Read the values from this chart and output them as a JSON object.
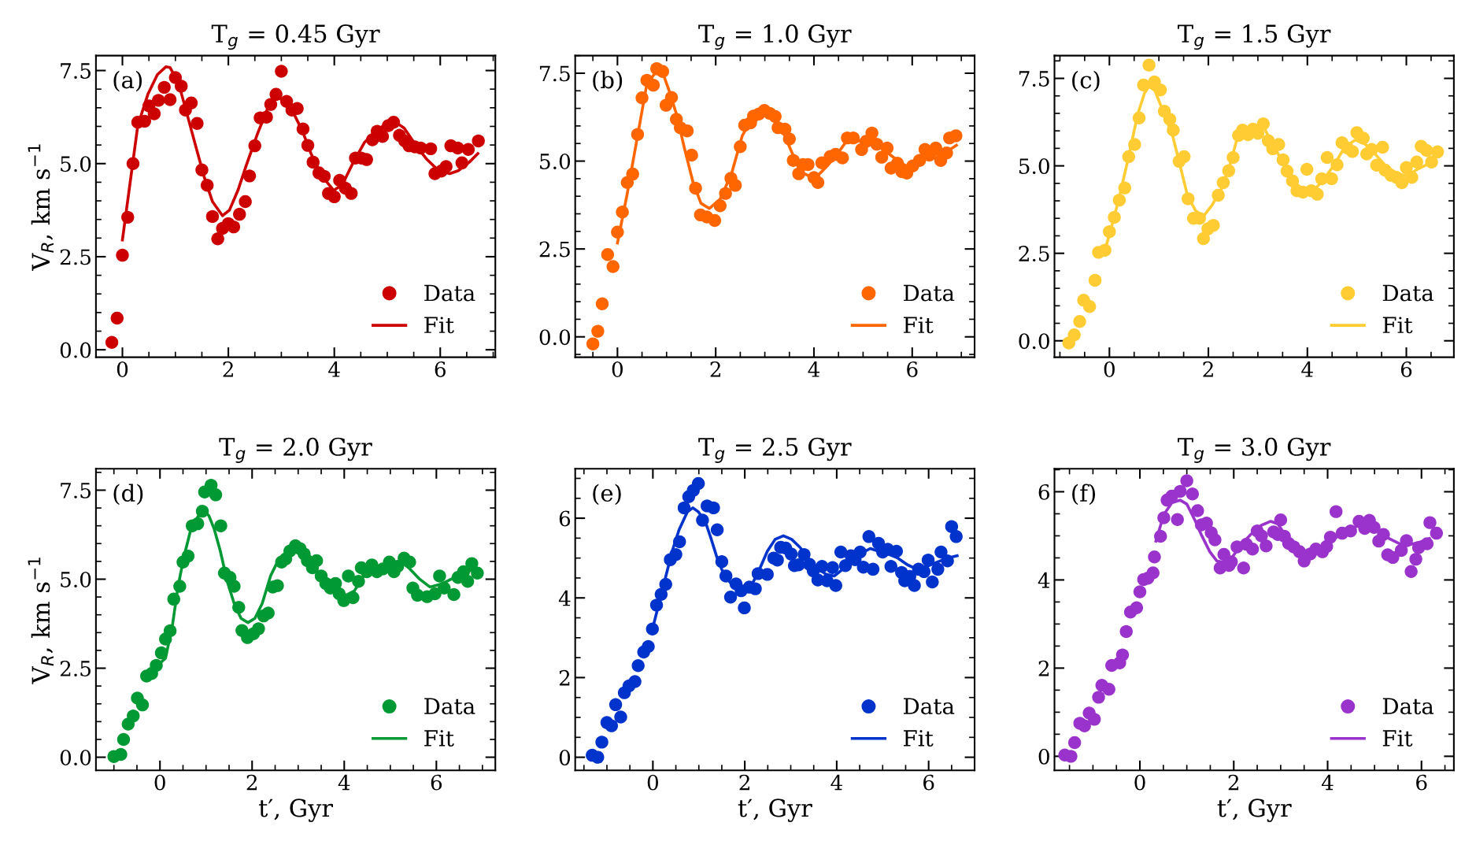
{
  "chart_data": [
    {
      "type": "scatter",
      "title": "T$_{g}$ = 0.45 Gyr",
      "ylabel": "V$_{R}$, km s$^{−1}$",
      "annotations": [
        "(a)"
      ],
      "legend": "bottom right",
      "grid": false,
      "xlim": [
        -0.5,
        7.04
      ],
      "ylim": [
        -0.2,
        7.9
      ],
      "xticks": [
        0,
        2,
        4,
        6
      ],
      "yticks": [
        {
          "value": 0,
          "label": "0.0"
        },
        {
          "value": 2.5,
          "label": "2.5"
        },
        {
          "value": 5,
          "label": "5.0"
        },
        {
          "value": 7.5,
          "label": "7.5"
        }
      ],
      "series": [
        {
          "name": "Data",
          "marker": "circle",
          "color": "#cc0000",
          "x": [
            -0.2,
            -0.1,
            0,
            0.1,
            0.2,
            0.29,
            0.42,
            0.5,
            0.6,
            0.68,
            0.79,
            0.9,
            1.0,
            1.11,
            1.19,
            1.3,
            1.41,
            1.5,
            1.6,
            1.7,
            1.8,
            1.89,
            2.0,
            2.1,
            2.21,
            2.32,
            2.4,
            2.5,
            2.6,
            2.72,
            2.8,
            2.9,
            3.0,
            3.1,
            3.2,
            3.3,
            3.41,
            3.5,
            3.6,
            3.71,
            3.81,
            3.89,
            4.0,
            4.1,
            4.21,
            4.32,
            4.4,
            4.51,
            4.61,
            4.72,
            4.81,
            4.91,
            5.02,
            5.12,
            5.23,
            5.33,
            5.41,
            5.52,
            5.63,
            5.82,
            5.9,
            6.02,
            6.11,
            6.2,
            6.33,
            6.41,
            6.53,
            6.72
          ],
          "values": [
            0.2,
            0.85,
            2.54,
            3.56,
            5.0,
            6.11,
            6.14,
            6.55,
            6.34,
            6.7,
            7.05,
            6.72,
            7.31,
            7.08,
            6.44,
            6.63,
            6.08,
            4.83,
            4.42,
            3.58,
            2.98,
            3.26,
            3.39,
            3.3,
            3.64,
            3.98,
            4.67,
            5.48,
            6.23,
            6.25,
            6.59,
            6.86,
            7.48,
            6.67,
            6.44,
            6.48,
            5.93,
            5.49,
            5.04,
            4.75,
            4.66,
            4.2,
            4.11,
            4.55,
            4.34,
            4.2,
            5.15,
            5.15,
            5.11,
            5.64,
            5.87,
            5.73,
            6.02,
            6.11,
            5.76,
            5.61,
            5.48,
            5.45,
            5.42,
            5.4,
            4.73,
            4.8,
            4.92,
            5.48,
            5.42,
            5.02,
            5.38,
            5.61
          ]
        },
        {
          "name": "Fit",
          "type": "line",
          "line_style": "solid",
          "color": "#cc0000",
          "x": [
            0,
            0.29,
            0.48,
            0.66,
            0.82,
            0.9,
            1.06,
            1.22,
            1.38,
            1.54,
            1.7,
            1.89,
            2.02,
            2.18,
            2.34,
            2.55,
            2.76,
            2.92,
            3.08,
            3.24,
            3.4,
            3.56,
            3.77,
            3.99,
            4.15,
            4.36,
            4.57,
            4.79,
            5.0,
            5.13,
            5.32,
            5.54,
            5.75,
            5.97,
            6.18,
            6.34,
            6.55,
            6.71
          ],
          "values": [
            2.95,
            6.02,
            6.86,
            7.39,
            7.6,
            7.58,
            7.16,
            6.33,
            5.49,
            4.66,
            3.98,
            3.6,
            3.75,
            4.28,
            4.96,
            5.8,
            6.55,
            6.78,
            6.67,
            6.33,
            5.87,
            5.27,
            4.66,
            4.28,
            4.43,
            5.04,
            5.57,
            5.87,
            6.1,
            6.14,
            5.95,
            5.49,
            5.11,
            4.81,
            4.73,
            4.81,
            5.04,
            5.27
          ]
        }
      ]
    },
    {
      "type": "scatter",
      "title": "T$_{g}$ = 1.0 Gyr",
      "annotations": [
        "(b)"
      ],
      "legend": "bottom right",
      "grid": false,
      "xlim": [
        -0.86,
        7.27
      ],
      "ylim": [
        -0.58,
        8.0
      ],
      "xticks": [
        0,
        2,
        4,
        6
      ],
      "yticks": [
        {
          "value": 0,
          "label": "0.0"
        },
        {
          "value": 2.5,
          "label": "2.5"
        },
        {
          "value": 5,
          "label": "5.0"
        },
        {
          "value": 7.5,
          "label": "7.5"
        }
      ],
      "series": [
        {
          "name": "Data",
          "marker": "circle",
          "color": "#ff6600",
          "x": [
            -0.5,
            -0.4,
            -0.31,
            -0.2,
            -0.09,
            0,
            0.1,
            0.2,
            0.31,
            0.41,
            0.5,
            0.6,
            0.73,
            0.8,
            0.92,
            0.99,
            1.1,
            1.2,
            1.28,
            1.42,
            1.51,
            1.59,
            1.69,
            1.82,
            1.98,
            2.09,
            2.2,
            2.31,
            2.4,
            2.5,
            2.59,
            2.71,
            2.77,
            2.88,
            2.99,
            3.1,
            3.21,
            3.27,
            3.41,
            3.5,
            3.58,
            3.69,
            3.78,
            3.88,
            4.0,
            4.08,
            4.16,
            4.33,
            4.44,
            4.58,
            4.68,
            4.8,
            4.97,
            5.06,
            5.18,
            5.28,
            5.38,
            5.49,
            5.57,
            5.7,
            5.79,
            5.89,
            6.01,
            6.15,
            6.26,
            6.35,
            6.48,
            6.58,
            6.7,
            6.76,
            6.89
          ],
          "values": [
            -0.2,
            0.16,
            0.94,
            2.34,
            2.0,
            2.98,
            3.55,
            4.39,
            4.63,
            5.76,
            6.8,
            7.3,
            7.16,
            7.63,
            7.55,
            6.59,
            6.81,
            6.19,
            5.95,
            5.86,
            5.17,
            4.23,
            3.47,
            3.41,
            3.31,
            3.73,
            4.08,
            4.51,
            4.31,
            5.41,
            6.02,
            6.09,
            6.28,
            6.34,
            6.44,
            6.36,
            6.27,
            5.95,
            5.91,
            5.63,
            5.02,
            4.64,
            4.9,
            4.9,
            4.53,
            4.39,
            4.95,
            5.13,
            5.19,
            5.09,
            5.66,
            5.66,
            5.33,
            5.56,
            5.8,
            5.48,
            5.11,
            5.37,
            4.8,
            4.94,
            4.7,
            4.66,
            4.86,
            5.02,
            5.33,
            5.17,
            5.37,
            5.02,
            5.23,
            5.66,
            5.72
          ]
        },
        {
          "name": "Fit",
          "type": "line",
          "line_style": "solid",
          "color": "#ff6600",
          "x": [
            0,
            0.2,
            0.42,
            0.59,
            0.75,
            0.92,
            1.06,
            1.2,
            1.37,
            1.54,
            1.7,
            1.87,
            2.09,
            2.32,
            2.54,
            2.77,
            2.99,
            3.21,
            3.38,
            3.55,
            3.72,
            3.88,
            4.05,
            4.27,
            4.5,
            4.66,
            4.89,
            5.11,
            5.34,
            5.56,
            5.78,
            5.89,
            6.12,
            6.4,
            6.68,
            6.9
          ],
          "values": [
            2.67,
            4.08,
            5.8,
            7.13,
            7.48,
            7.52,
            6.97,
            6.34,
            5.33,
            4.39,
            3.8,
            3.65,
            3.92,
            4.63,
            5.72,
            6.27,
            6.41,
            6.27,
            5.8,
            5.25,
            4.7,
            4.59,
            4.55,
            4.86,
            5.25,
            5.56,
            5.56,
            5.64,
            5.41,
            5.17,
            4.94,
            4.86,
            4.98,
            5.17,
            5.25,
            5.45
          ]
        }
      ]
    },
    {
      "type": "scatter",
      "title": "T$_{g}$ = 1.5 Gyr",
      "annotations": [
        "(c)"
      ],
      "legend": "bottom right",
      "grid": false,
      "xlim": [
        -1.11,
        6.96
      ],
      "ylim": [
        -0.47,
        8.15
      ],
      "xticks": [
        0,
        2,
        4,
        6
      ],
      "yticks": [
        {
          "value": 0,
          "label": "0.0"
        },
        {
          "value": 2.5,
          "label": "2.5"
        },
        {
          "value": 5,
          "label": "5.0"
        },
        {
          "value": 7.5,
          "label": "7.5"
        }
      ],
      "series": [
        {
          "name": "Data",
          "marker": "circle",
          "color": "#ffcc33",
          "x": [
            -0.82,
            -0.71,
            -0.6,
            -0.52,
            -0.4,
            -0.29,
            -0.22,
            -0.09,
            0,
            0.1,
            0.2,
            0.31,
            0.39,
            0.51,
            0.6,
            0.69,
            0.8,
            0.91,
            1.03,
            1.11,
            1.22,
            1.29,
            1.41,
            1.51,
            1.59,
            1.7,
            1.82,
            1.9,
            1.99,
            2.1,
            2.2,
            2.3,
            2.41,
            2.5,
            2.61,
            2.69,
            2.8,
            2.9,
            3.0,
            3.11,
            3.21,
            3.3,
            3.42,
            3.51,
            3.59,
            3.7,
            3.79,
            3.91,
            3.99,
            4.08,
            4.2,
            4.29,
            4.4,
            4.49,
            4.6,
            4.7,
            4.81,
            4.91,
            5.0,
            5.13,
            5.2,
            5.3,
            5.4,
            5.52,
            5.57,
            5.69,
            5.8,
            5.91,
            6.0,
            6.11,
            6.21,
            6.3,
            6.41,
            6.51,
            6.63
          ],
          "values": [
            -0.06,
            0.17,
            0.55,
            1.16,
            0.98,
            1.73,
            2.53,
            2.59,
            3.12,
            3.53,
            4.02,
            4.37,
            5.26,
            5.61,
            6.37,
            7.31,
            7.88,
            7.4,
            7.17,
            6.56,
            6.33,
            6.02,
            5.13,
            5.26,
            4.06,
            3.5,
            3.5,
            2.92,
            3.2,
            3.3,
            4.16,
            4.52,
            4.86,
            5.24,
            5.87,
            6.02,
            5.89,
            6.05,
            5.93,
            6.2,
            5.72,
            5.49,
            5.61,
            5.17,
            4.85,
            4.57,
            4.29,
            4.25,
            4.9,
            4.29,
            4.19,
            4.63,
            5.24,
            4.63,
            5.03,
            5.66,
            5.51,
            5.41,
            5.95,
            5.79,
            5.34,
            5.47,
            5.02,
            5.53,
            4.88,
            4.73,
            4.67,
            4.52,
            4.95,
            4.67,
            5.11,
            5.56,
            5.44,
            5.11,
            5.4
          ]
        },
        {
          "name": "Fit",
          "type": "line",
          "line_style": "solid",
          "color": "#ffcc33",
          "x": [
            -0.09,
            0,
            0.2,
            0.41,
            0.57,
            0.71,
            0.8,
            0.92,
            1.11,
            1.28,
            1.44,
            1.58,
            1.74,
            1.9,
            2.07,
            2.26,
            2.42,
            2.58,
            2.74,
            2.96,
            3.13,
            3.29,
            3.45,
            3.61,
            3.78,
            3.94,
            4.13,
            4.32,
            4.54,
            4.76,
            4.97,
            5.16,
            5.38,
            5.57,
            5.79,
            6.01,
            6.22,
            6.49
          ],
          "values": [
            2.6,
            3.03,
            4.1,
            5.4,
            6.47,
            7.08,
            7.27,
            7.15,
            6.47,
            5.85,
            4.94,
            4.14,
            3.72,
            3.56,
            3.87,
            4.33,
            4.94,
            5.78,
            6.01,
            6.01,
            6.08,
            5.63,
            5.24,
            4.86,
            4.48,
            4.29,
            4.29,
            4.6,
            5.02,
            5.55,
            5.74,
            5.63,
            5.32,
            5.02,
            4.79,
            4.71,
            4.9,
            5.09
          ]
        }
      ]
    },
    {
      "type": "scatter",
      "title": "T$_{g}$ = 2.0 Gyr",
      "xlabel": "t′, Gyr",
      "ylabel": "V$_{R}$, km s$^{−1}$",
      "annotations": [
        "(d)"
      ],
      "legend": "bottom right",
      "grid": false,
      "xlim": [
        -1.39,
        7.28
      ],
      "ylim": [
        -0.37,
        8.1
      ],
      "xticks": [
        0,
        2,
        4,
        6
      ],
      "yticks": [
        {
          "value": 0,
          "label": "0.0"
        },
        {
          "value": 2.5,
          "label": "2.5"
        },
        {
          "value": 5,
          "label": "5.0"
        },
        {
          "value": 7.5,
          "label": "7.5"
        }
      ],
      "series": [
        {
          "name": "Data",
          "marker": "circle",
          "color": "#009933",
          "x": [
            -1.0,
            -0.85,
            -0.79,
            -0.69,
            -0.58,
            -0.49,
            -0.38,
            -0.29,
            -0.18,
            -0.08,
            0.03,
            0.12,
            0.22,
            0.3,
            0.43,
            0.5,
            0.61,
            0.7,
            0.82,
            0.92,
            0.97,
            1.11,
            1.21,
            1.32,
            1.4,
            1.52,
            1.61,
            1.71,
            1.78,
            1.9,
            2.03,
            2.14,
            2.25,
            2.35,
            2.45,
            2.55,
            2.64,
            2.73,
            2.82,
            2.94,
            3.04,
            3.13,
            3.2,
            3.31,
            3.4,
            3.5,
            3.6,
            3.7,
            3.81,
            3.89,
            3.99,
            4.09,
            4.19,
            4.31,
            4.37,
            4.49,
            4.6,
            4.71,
            4.84,
            4.98,
            5.08,
            5.16,
            5.3,
            5.42,
            5.49,
            5.59,
            5.8,
            5.97,
            6.07,
            6.17,
            6.38,
            6.47,
            6.59,
            6.68,
            6.77,
            6.89
          ],
          "values": [
            0.02,
            0.08,
            0.5,
            0.93,
            1.16,
            1.66,
            1.47,
            2.28,
            2.35,
            2.58,
            2.93,
            3.32,
            3.55,
            4.44,
            4.8,
            5.48,
            5.65,
            6.5,
            6.56,
            6.91,
            7.45,
            7.64,
            7.37,
            6.5,
            5.17,
            5.05,
            4.8,
            4.21,
            3.56,
            3.36,
            3.47,
            3.61,
            3.97,
            4.05,
            4.78,
            4.82,
            5.48,
            5.57,
            5.79,
            5.94,
            5.86,
            5.71,
            5.52,
            5.32,
            5.52,
            5.09,
            4.88,
            4.75,
            4.88,
            4.59,
            4.4,
            5.09,
            4.48,
            4.94,
            5.32,
            5.21,
            5.4,
            5.21,
            5.29,
            5.48,
            5.21,
            5.36,
            5.59,
            5.48,
            4.75,
            4.55,
            4.51,
            4.59,
            5.09,
            4.75,
            4.57,
            5.05,
            5.21,
            4.94,
            5.44,
            5.17
          ]
        },
        {
          "name": "Fit",
          "type": "line",
          "line_style": "solid",
          "color": "#009933",
          "x": [
            -0.08,
            0.12,
            0.27,
            0.39,
            0.52,
            0.67,
            0.82,
            0.94,
            1.06,
            1.18,
            1.31,
            1.46,
            1.61,
            1.76,
            1.91,
            2.06,
            2.22,
            2.4,
            2.58,
            2.76,
            2.94,
            3.13,
            3.31,
            3.49,
            3.67,
            3.86,
            4.04,
            4.22,
            4.4,
            4.58,
            4.83,
            5.07,
            5.25,
            5.4,
            5.62,
            5.86,
            6.1,
            6.35,
            6.59,
            6.83
          ],
          "values": [
            2.55,
            2.78,
            3.7,
            4.78,
            5.63,
            6.4,
            6.75,
            6.91,
            6.79,
            6.4,
            5.79,
            4.94,
            4.32,
            3.9,
            3.78,
            3.9,
            4.32,
            5.09,
            5.56,
            5.75,
            5.79,
            5.63,
            5.36,
            5.09,
            4.82,
            4.67,
            4.55,
            4.67,
            5.05,
            5.29,
            5.32,
            5.4,
            5.48,
            5.32,
            5.02,
            4.78,
            4.86,
            5.02,
            5.17,
            5.29
          ]
        }
      ]
    },
    {
      "type": "scatter",
      "title": "T$_{g}$ = 2.5 Gyr",
      "xlabel": "t′, Gyr",
      "annotations": [
        "(e)"
      ],
      "legend": "bottom right",
      "grid": false,
      "xlim": [
        -1.69,
        7.0
      ],
      "ylim": [
        -0.33,
        7.24
      ],
      "xticks": [
        0,
        2,
        4,
        6
      ],
      "yticks": [
        0,
        2,
        4,
        6
      ],
      "series": [
        {
          "name": "Data",
          "marker": "circle",
          "color": "#0033cc",
          "x": [
            -1.32,
            -1.2,
            -1.11,
            -1.0,
            -0.9,
            -0.81,
            -0.7,
            -0.62,
            -0.52,
            -0.39,
            -0.32,
            -0.2,
            -0.1,
            -0.01,
            0.08,
            0.18,
            0.28,
            0.38,
            0.5,
            0.58,
            0.68,
            0.78,
            0.88,
            0.99,
            1.08,
            1.18,
            1.32,
            1.4,
            1.5,
            1.59,
            1.69,
            1.81,
            1.92,
            1.99,
            2.1,
            2.23,
            2.29,
            2.49,
            2.63,
            2.71,
            2.78,
            2.89,
            3.01,
            3.08,
            3.17,
            3.29,
            3.41,
            3.49,
            3.59,
            3.68,
            3.79,
            3.91,
            3.98,
            4.09,
            4.19,
            4.31,
            4.4,
            4.51,
            4.58,
            4.7,
            4.79,
            4.91,
            5.0,
            5.11,
            5.18,
            5.3,
            5.41,
            5.48,
            5.59,
            5.69,
            5.78,
            5.9,
            5.99,
            6.08,
            6.2,
            6.27,
            6.41,
            6.5,
            6.6
          ],
          "values": [
            0.05,
            0,
            0.38,
            0.87,
            0.79,
            1.32,
            1.01,
            1.62,
            1.79,
            1.9,
            2.3,
            2.64,
            2.78,
            3.22,
            3.82,
            4.09,
            4.34,
            4.96,
            5.09,
            5.41,
            6.26,
            6.54,
            6.7,
            6.87,
            5.95,
            6.31,
            6.26,
            5.71,
            4.91,
            4.55,
            4.02,
            4.35,
            4.18,
            3.75,
            4.27,
            4.23,
            4.61,
            4.59,
            5.0,
            4.95,
            5.27,
            5.25,
            5.1,
            4.81,
            4.83,
            5.09,
            4.84,
            4.68,
            4.45,
            4.79,
            4.43,
            4.76,
            4.31,
            5.15,
            4.81,
            5.06,
            4.96,
            5.15,
            4.77,
            5.54,
            4.72,
            5.37,
            5.15,
            5.22,
            4.79,
            5.17,
            4.64,
            4.43,
            4.54,
            4.31,
            4.72,
            4.66,
            4.95,
            4.4,
            4.72,
            5.15,
            4.93,
            5.79,
            5.54
          ]
        },
        {
          "name": "Fit",
          "type": "line",
          "line_style": "solid",
          "color": "#0033cc",
          "x": [
            0,
            0.15,
            0.27,
            0.42,
            0.57,
            0.75,
            0.87,
            0.99,
            1.14,
            1.26,
            1.41,
            1.56,
            1.74,
            1.95,
            2.13,
            2.31,
            2.49,
            2.66,
            2.84,
            3.02,
            3.2,
            3.38,
            3.56,
            3.77,
            3.95,
            4.13,
            4.34,
            4.55,
            4.73,
            4.91,
            5.12,
            5.33,
            5.54,
            5.75,
            5.96,
            6.17,
            6.41,
            6.62
          ],
          "values": [
            3.26,
            3.94,
            4.49,
            5.17,
            5.71,
            6.16,
            6.26,
            6.16,
            5.92,
            5.51,
            4.96,
            4.55,
            4.31,
            4.18,
            4.28,
            4.69,
            5.17,
            5.47,
            5.56,
            5.47,
            5.27,
            5.0,
            4.76,
            4.59,
            4.55,
            4.72,
            4.96,
            5.13,
            5.24,
            5.17,
            5.1,
            5.0,
            4.83,
            4.72,
            4.79,
            4.89,
            5.0,
            5.06
          ]
        }
      ]
    },
    {
      "type": "scatter",
      "title": "T$_{g}$ = 3.0 Gyr",
      "xlabel": "t′, Gyr",
      "annotations": [
        "(f)"
      ],
      "legend": "bottom right",
      "grid": false,
      "xlim": [
        -1.82,
        6.69
      ],
      "ylim": [
        -0.32,
        6.52
      ],
      "xticks": [
        0,
        2,
        4,
        6
      ],
      "yticks": [
        0,
        2,
        4,
        6
      ],
      "series": [
        {
          "name": "Data",
          "marker": "circle",
          "color": "#9933cc",
          "x": [
            -1.6,
            -1.47,
            -1.39,
            -1.28,
            -1.18,
            -1.08,
            -0.97,
            -0.88,
            -0.81,
            -0.66,
            -0.6,
            -0.43,
            -0.37,
            -0.29,
            -0.2,
            -0.07,
            0,
            0.08,
            0.17,
            0.28,
            0.31,
            0.44,
            0.51,
            0.58,
            0.68,
            0.8,
            0.86,
            1.0,
            1.12,
            1.23,
            1.31,
            1.42,
            1.52,
            1.6,
            1.71,
            1.79,
            1.9,
            1.95,
            2.07,
            2.21,
            2.27,
            2.4,
            2.5,
            2.59,
            2.69,
            2.85,
            2.94,
            3.0,
            3.08,
            3.17,
            3.28,
            3.4,
            3.5,
            3.63,
            3.75,
            3.89,
            3.98,
            4.06,
            4.18,
            4.31,
            4.49,
            4.67,
            4.79,
            4.89,
            4.99,
            5.09,
            5.19,
            5.28,
            5.39,
            5.57,
            5.68,
            5.78,
            5.88,
            5.94,
            6.12,
            6.18,
            6.32
          ],
          "values": [
            0.03,
            0,
            0.31,
            0.75,
            0.69,
            0.98,
            0.84,
            1.34,
            1.61,
            1.52,
            2.06,
            2.12,
            2.3,
            2.83,
            3.27,
            3.37,
            3.73,
            4.01,
            4.04,
            4.16,
            4.52,
            4.99,
            5.41,
            5.81,
            5.9,
            5.37,
            6.01,
            6.25,
            5.95,
            5.57,
            5.25,
            5.29,
            5.07,
            4.91,
            4.27,
            4.58,
            4.33,
            4.41,
            4.75,
            4.27,
            4.81,
            4.7,
            5.11,
            5.0,
            4.77,
            5.09,
            5.03,
            5.36,
            4.99,
            4.83,
            4.75,
            4.64,
            4.43,
            4.59,
            4.7,
            4.64,
            4.76,
            4.97,
            5.55,
            5.06,
            5.11,
            5.33,
            5.17,
            5.35,
            5.19,
            4.88,
            5.03,
            4.57,
            4.51,
            4.67,
            4.89,
            4.19,
            4.47,
            4.73,
            4.82,
            5.3,
            5.06
          ]
        },
        {
          "name": "Fit",
          "type": "line",
          "line_style": "solid",
          "color": "#9933cc",
          "x": [
            0.34,
            0.51,
            0.68,
            0.86,
            1.0,
            1.17,
            1.32,
            1.49,
            1.64,
            1.78,
            1.95,
            2.13,
            2.36,
            2.59,
            2.79,
            2.94,
            3.11,
            3.28,
            3.49,
            3.69,
            3.92,
            4.15,
            4.38,
            4.61,
            4.84,
            5.08,
            5.31,
            5.54,
            5.71,
            5.94,
            6.17
          ],
          "values": [
            4.88,
            5.48,
            5.75,
            5.81,
            5.72,
            5.36,
            5.0,
            4.64,
            4.43,
            4.4,
            4.49,
            4.76,
            5.03,
            5.24,
            5.33,
            5.27,
            5.0,
            4.76,
            4.61,
            4.61,
            4.73,
            4.94,
            5.09,
            5.21,
            5.24,
            5.12,
            4.94,
            4.82,
            4.79,
            4.85,
            4.94
          ]
        }
      ]
    }
  ]
}
